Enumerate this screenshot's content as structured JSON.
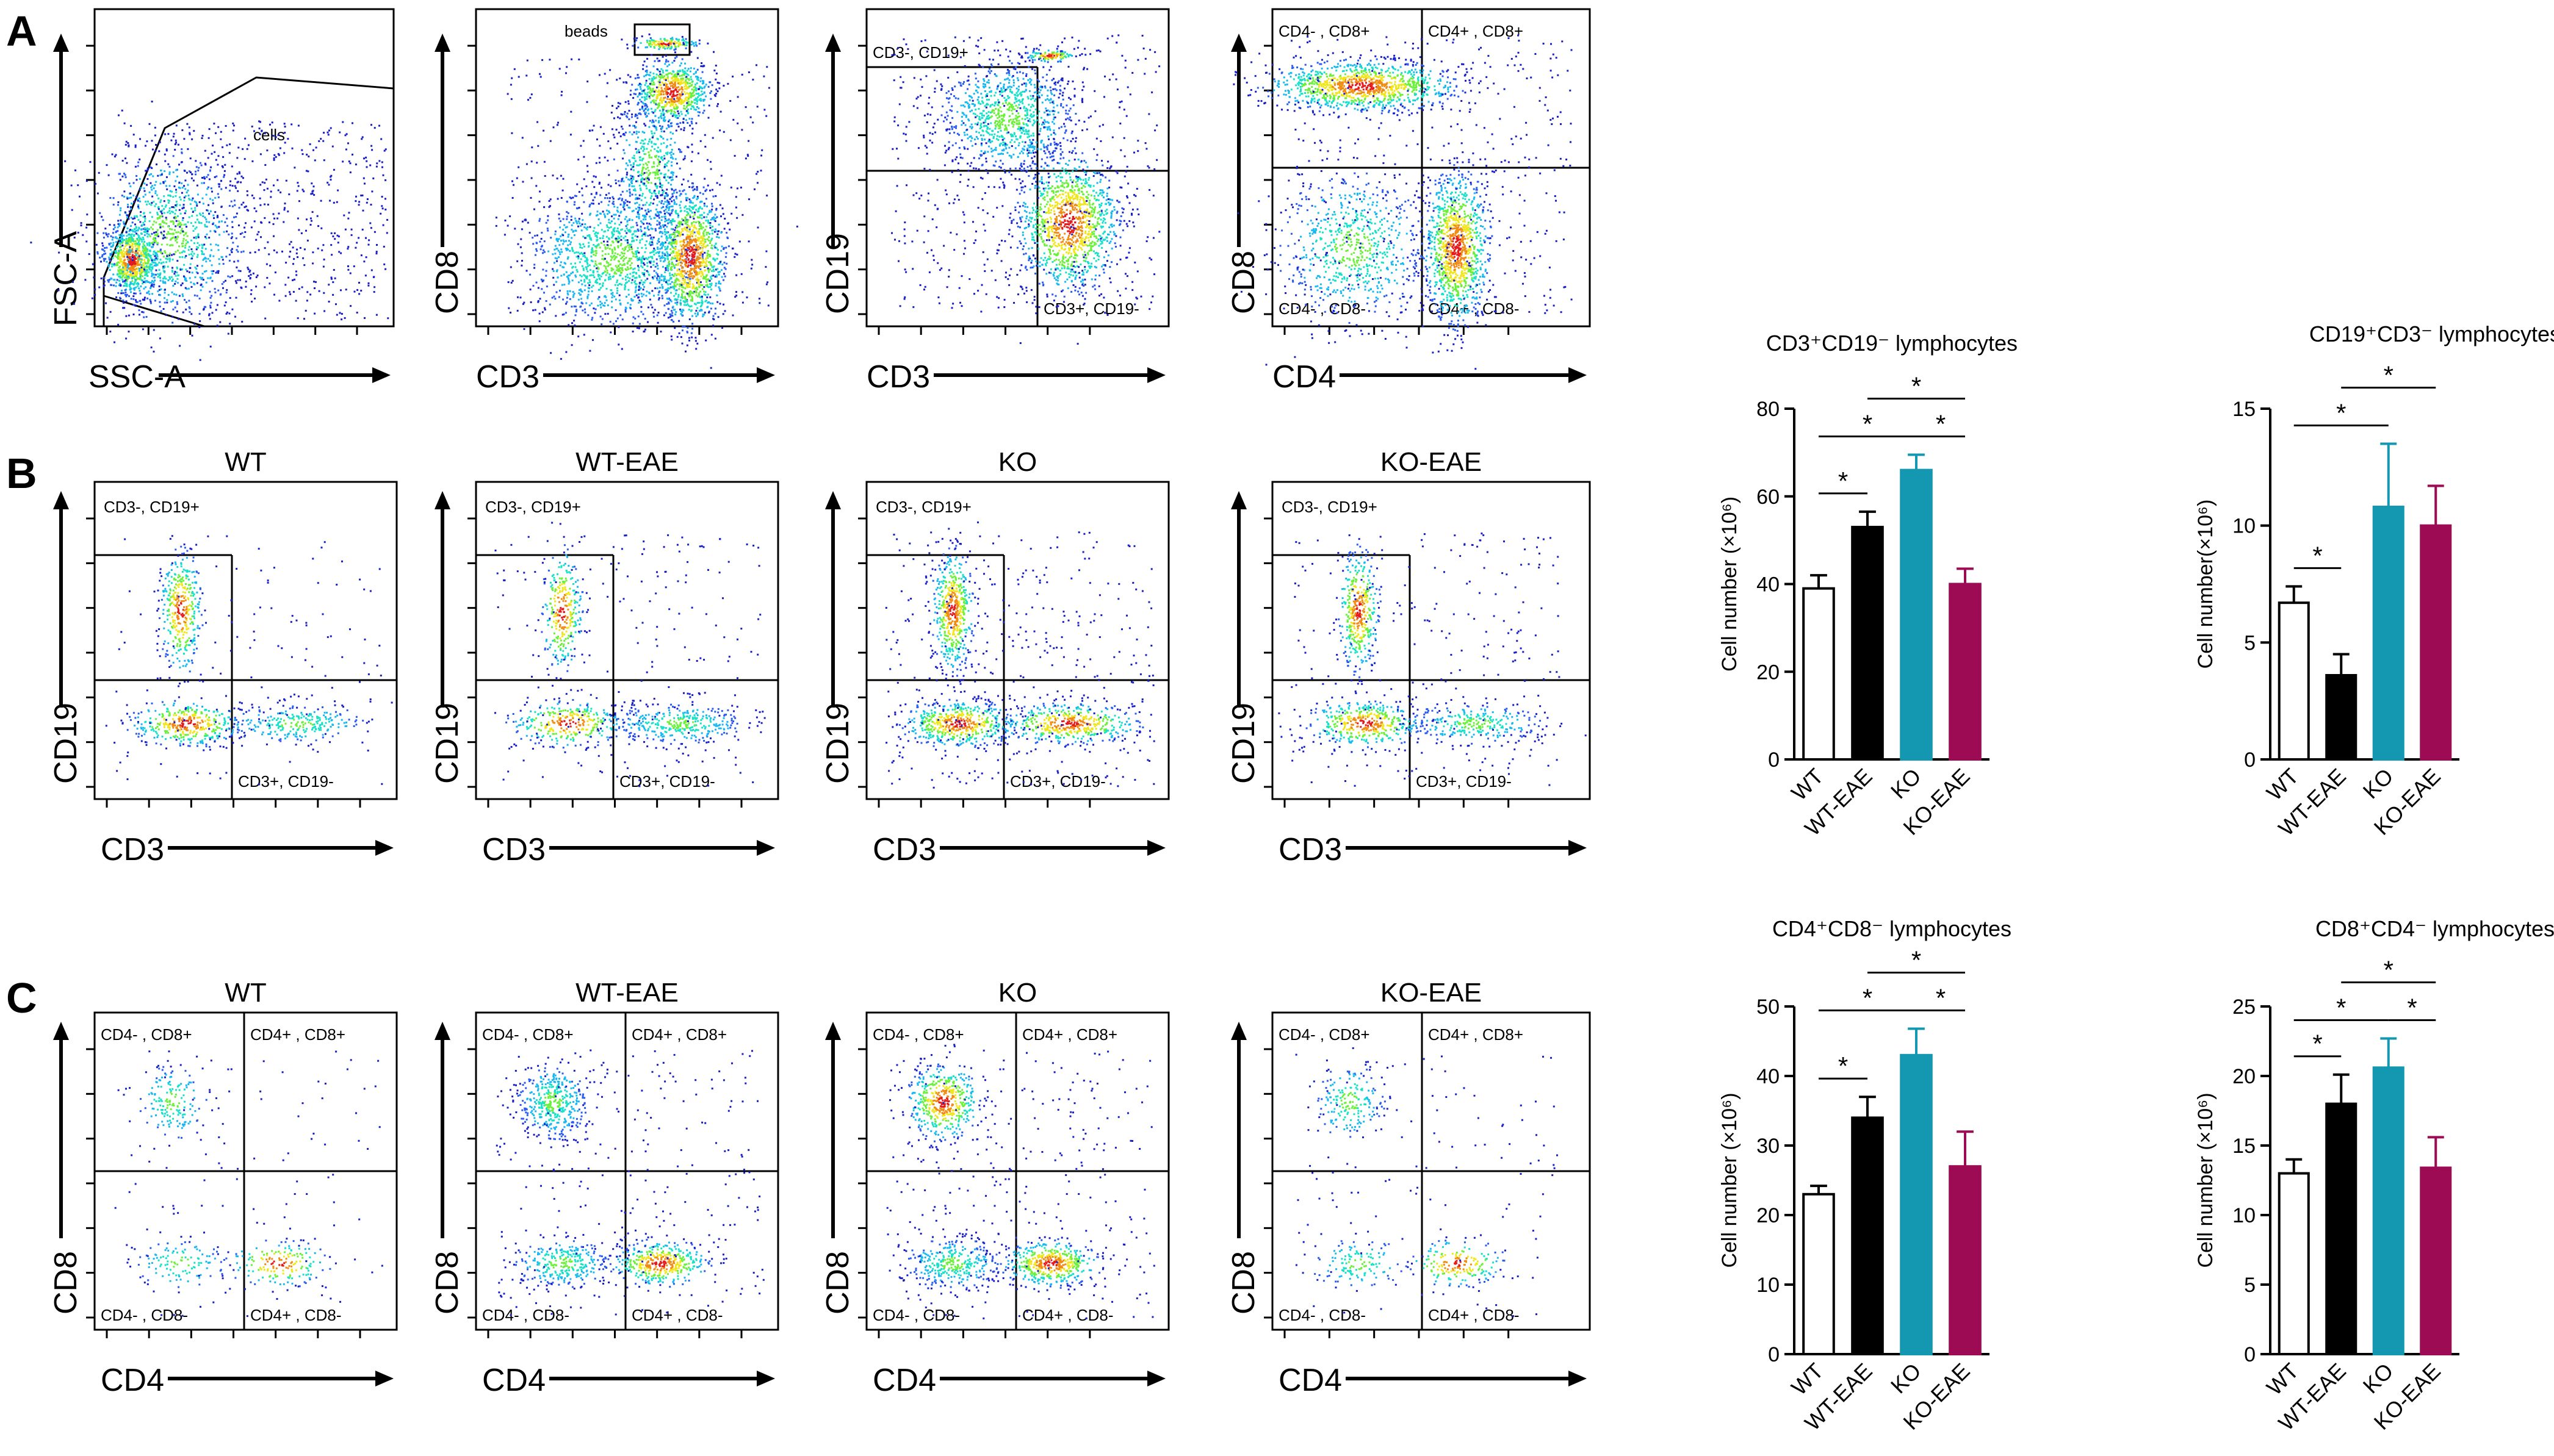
{
  "figure": {
    "panel_letters": [
      "A",
      "B",
      "C"
    ],
    "colors": {
      "axis": "#000000",
      "dot_low": "#1a20c8",
      "dot_mid": "#19d9f0",
      "dot_high": "#e41a1c",
      "WT": "#ffffff",
      "WT-EAE": "#000000",
      "KO": "#1497b0",
      "KO-EAE": "#9c0b54"
    }
  },
  "row_a": [
    {
      "x_label": "SSC-A",
      "y_label": "FSC-A",
      "gate_labels": [
        "cells"
      ]
    },
    {
      "x_label": "CD3",
      "y_label": "CD8",
      "gate_labels": [
        "beads"
      ]
    },
    {
      "x_label": "CD3",
      "y_label": "CD19",
      "gate_labels": [
        "CD3-, CD19+",
        "CD3+, CD19-"
      ]
    },
    {
      "x_label": "CD4",
      "y_label": "CD8",
      "gate_labels": [
        "CD4- , CD8+",
        "CD4+ , CD8+",
        "CD4- , CD8-",
        "CD4+ , CD8-"
      ]
    }
  ],
  "row_b": {
    "x_label": "CD3",
    "y_label": "CD19",
    "quadrant_labels": [
      "CD3-, CD19+",
      "CD3+, CD19-"
    ],
    "groups": [
      "WT",
      "WT-EAE",
      "KO",
      "KO-EAE"
    ]
  },
  "row_c": {
    "x_label": "CD4",
    "y_label": "CD8",
    "quadrant_labels": [
      "CD4- , CD8+",
      "CD4+ , CD8+",
      "CD4- , CD8-",
      "CD4+ , CD8-"
    ],
    "groups": [
      "WT",
      "WT-EAE",
      "KO",
      "KO-EAE"
    ]
  },
  "chart_data": [
    {
      "type": "bar",
      "title": "CD3⁺CD19⁻ lymphocytes",
      "categories": [
        "WT",
        "WT-EAE",
        "KO",
        "KO-EAE"
      ],
      "values": [
        39,
        53,
        66,
        40
      ],
      "errors": [
        3,
        3.5,
        3.5,
        3.5
      ],
      "ylabel": "Cell number (×10⁶)",
      "ylim": [
        0,
        80
      ],
      "yticks": [
        0,
        20,
        40,
        60,
        80
      ],
      "significance": [
        {
          "pair": [
            "WT",
            "WT-EAE"
          ],
          "label": "*",
          "level": 1
        },
        {
          "pair": [
            "WT",
            "KO"
          ],
          "label": "*",
          "level": 2
        },
        {
          "pair": [
            "WT-EAE",
            "KO-EAE"
          ],
          "label": "*",
          "level": 3
        },
        {
          "pair": [
            "KO",
            "KO-EAE"
          ],
          "label": "*",
          "level": 1
        }
      ]
    },
    {
      "type": "bar",
      "title": "CD19⁺CD3⁻ lymphocytes",
      "categories": [
        "WT",
        "WT-EAE",
        "KO",
        "KO-EAE"
      ],
      "values": [
        6.7,
        3.6,
        10.8,
        10
      ],
      "errors": [
        0.7,
        0.9,
        2.7,
        1.7
      ],
      "ylabel": "Cell number(×10⁶)",
      "ylim": [
        0,
        15
      ],
      "yticks": [
        0,
        5,
        10,
        15
      ],
      "significance": [
        {
          "pair": [
            "WT",
            "WT-EAE"
          ],
          "label": "*",
          "level": 1
        },
        {
          "pair": [
            "WT",
            "KO"
          ],
          "label": "*",
          "level": 2
        },
        {
          "pair": [
            "WT-EAE",
            "KO-EAE"
          ],
          "label": "*",
          "level": 3
        }
      ]
    },
    {
      "type": "bar",
      "title": "CD4⁺CD8⁻ lymphocytes",
      "categories": [
        "WT",
        "WT-EAE",
        "KO",
        "KO-EAE"
      ],
      "values": [
        23,
        34,
        43,
        27
      ],
      "errors": [
        1.2,
        3,
        3.8,
        5
      ],
      "ylabel": "Cell number (×10⁶)",
      "ylim": [
        0,
        50
      ],
      "yticks": [
        0,
        10,
        20,
        30,
        40,
        50
      ],
      "significance": [
        {
          "pair": [
            "WT",
            "WT-EAE"
          ],
          "label": "*",
          "level": 1
        },
        {
          "pair": [
            "WT",
            "KO"
          ],
          "label": "*",
          "level": 2
        },
        {
          "pair": [
            "WT-EAE",
            "KO-EAE"
          ],
          "label": "*",
          "level": 3
        },
        {
          "pair": [
            "KO",
            "KO-EAE"
          ],
          "label": "*",
          "level": 1
        }
      ]
    },
    {
      "type": "bar",
      "title": "CD8⁺CD4⁻ lymphocytes",
      "categories": [
        "WT",
        "WT-EAE",
        "KO",
        "KO-EAE"
      ],
      "values": [
        13,
        18,
        20.6,
        13.4
      ],
      "errors": [
        1,
        2.1,
        2.1,
        2.2
      ],
      "ylabel": "Cell number (×10⁶)",
      "ylim": [
        0,
        25
      ],
      "yticks": [
        0,
        5,
        10,
        15,
        20,
        25
      ],
      "significance": [
        {
          "pair": [
            "WT",
            "WT-EAE"
          ],
          "label": "*",
          "level": 1
        },
        {
          "pair": [
            "WT",
            "KO"
          ],
          "label": "*",
          "level": 2
        },
        {
          "pair": [
            "WT-EAE",
            "KO-EAE"
          ],
          "label": "*",
          "level": 3
        },
        {
          "pair": [
            "KO",
            "KO-EAE"
          ],
          "label": "*",
          "level": 1
        }
      ]
    }
  ]
}
